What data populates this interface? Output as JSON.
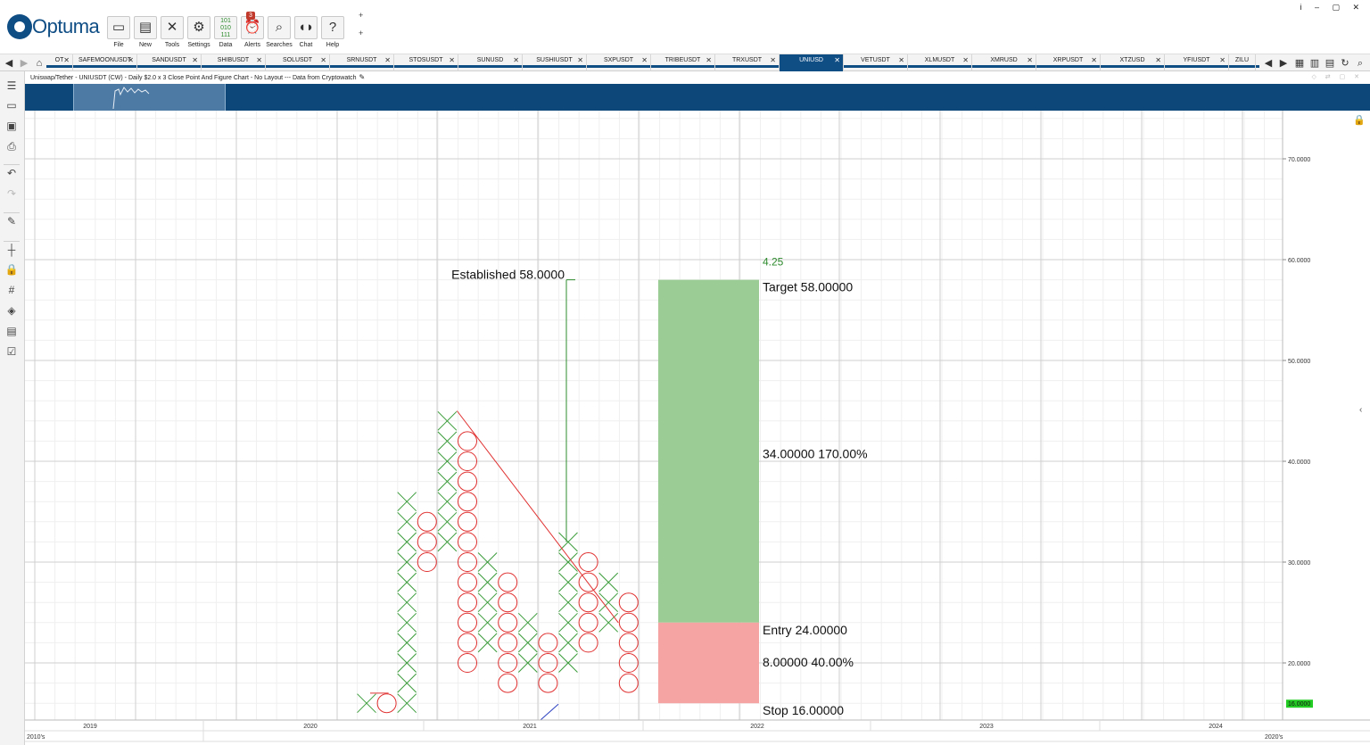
{
  "app": {
    "logo_text": "Optuma",
    "window_controls": "i ‒ ▢ ✕"
  },
  "toolbar": {
    "buttons": [
      {
        "label": "File",
        "icon": "folder-icon"
      },
      {
        "label": "New",
        "icon": "new-document-icon"
      },
      {
        "label": "Tools",
        "icon": "tools-icon"
      },
      {
        "label": "Settings",
        "icon": "settings-icon"
      },
      {
        "label": "Data",
        "icon": "data-binary-icon"
      },
      {
        "label": "Alerts",
        "icon": "alarm-clock-icon",
        "badge": "3"
      },
      {
        "label": "Searches",
        "icon": "search-icon"
      },
      {
        "label": "Chat",
        "icon": "chat-icon"
      },
      {
        "label": "Help",
        "icon": "help-icon"
      }
    ],
    "plus_symbol": "+"
  },
  "tabs": [
    {
      "label": "OT"
    },
    {
      "label": "SAFEMOONUSDT"
    },
    {
      "label": "SANDUSDT"
    },
    {
      "label": "SHIBUSDT"
    },
    {
      "label": "SOLUSDT"
    },
    {
      "label": "SRNUSDT"
    },
    {
      "label": "STOSUSDT"
    },
    {
      "label": "SUNUSD"
    },
    {
      "label": "SUSHIUSDT"
    },
    {
      "label": "SXPUSDT"
    },
    {
      "label": "TRIBEUSDT"
    },
    {
      "label": "TRXUSDT"
    },
    {
      "label": "UNIUSD",
      "active": true
    },
    {
      "label": "VETUSDT"
    },
    {
      "label": "XLMUSDT"
    },
    {
      "label": "XMRUSD"
    },
    {
      "label": "XRPUSDT"
    },
    {
      "label": "XTZUSD"
    },
    {
      "label": "YFIUSDT"
    },
    {
      "label": "ZILU"
    }
  ],
  "chart_header": {
    "title": "Uniswap/Tether - UNIUSDT (CW) - Daily $2.0 x 3 Close Point And Figure Chart - No Layout --- Data from Cryptowatch"
  },
  "colors": {
    "brand_blue": "#0f4d85",
    "x_color": "#3a9c3a",
    "o_color": "#e03030",
    "target_fill": "#9ccc96",
    "stop_fill": "#f5a3a3",
    "annotation_green": "#2e8b2e",
    "price_marker": "#22cc22"
  },
  "chart_data": {
    "type": "point_and_figure",
    "box_size": 2.0,
    "reversal": 3,
    "y_axis": {
      "ylim": [
        14,
        74
      ],
      "ticks": [
        "70.0000",
        "60.0000",
        "50.0000",
        "40.0000",
        "30.0000",
        "20.0000"
      ],
      "tick_values": [
        70,
        60,
        50,
        40,
        30,
        20
      ]
    },
    "x_axis": {
      "year_labels": [
        "2019",
        "2020",
        "2021",
        "2022",
        "2023",
        "2024"
      ],
      "decade_labels": [
        "2010's",
        "2020's"
      ]
    },
    "columns": [
      {
        "col": 0,
        "type": "X",
        "low": 16,
        "high": 16
      },
      {
        "col": 1,
        "type": "O",
        "low": 16,
        "high": 16
      },
      {
        "col": 2,
        "type": "X",
        "low": 16,
        "high": 36
      },
      {
        "col": 3,
        "type": "O",
        "low": 30,
        "high": 34
      },
      {
        "col": 4,
        "type": "X",
        "low": 32,
        "high": 44
      },
      {
        "col": 5,
        "type": "O",
        "low": 20,
        "high": 42
      },
      {
        "col": 6,
        "type": "X",
        "low": 22,
        "high": 30
      },
      {
        "col": 7,
        "type": "O",
        "low": 18,
        "high": 28
      },
      {
        "col": 8,
        "type": "X",
        "low": 20,
        "high": 24
      },
      {
        "col": 9,
        "type": "O",
        "low": 18,
        "high": 22
      },
      {
        "col": 10,
        "type": "X",
        "low": 20,
        "high": 32
      },
      {
        "col": 11,
        "type": "O",
        "low": 22,
        "high": 30
      },
      {
        "col": 12,
        "type": "X",
        "low": 24,
        "high": 28
      },
      {
        "col": 13,
        "type": "O",
        "low": 18,
        "high": 26
      }
    ],
    "established_label": "Established 58.0000",
    "established_value": 58,
    "target": {
      "label": "Target",
      "value_text": "58.00000",
      "value": 58
    },
    "entry": {
      "label": "Entry",
      "value_text": "24.00000",
      "value": 24
    },
    "stop": {
      "label": "Stop",
      "value_text": "16.00000",
      "value": 16
    },
    "reward_text": "34.00000   170.00%",
    "risk_text": "8.00000   40.00%",
    "ratio_text": "4.25",
    "last_price_text": "16.0000",
    "last_price": 16
  }
}
